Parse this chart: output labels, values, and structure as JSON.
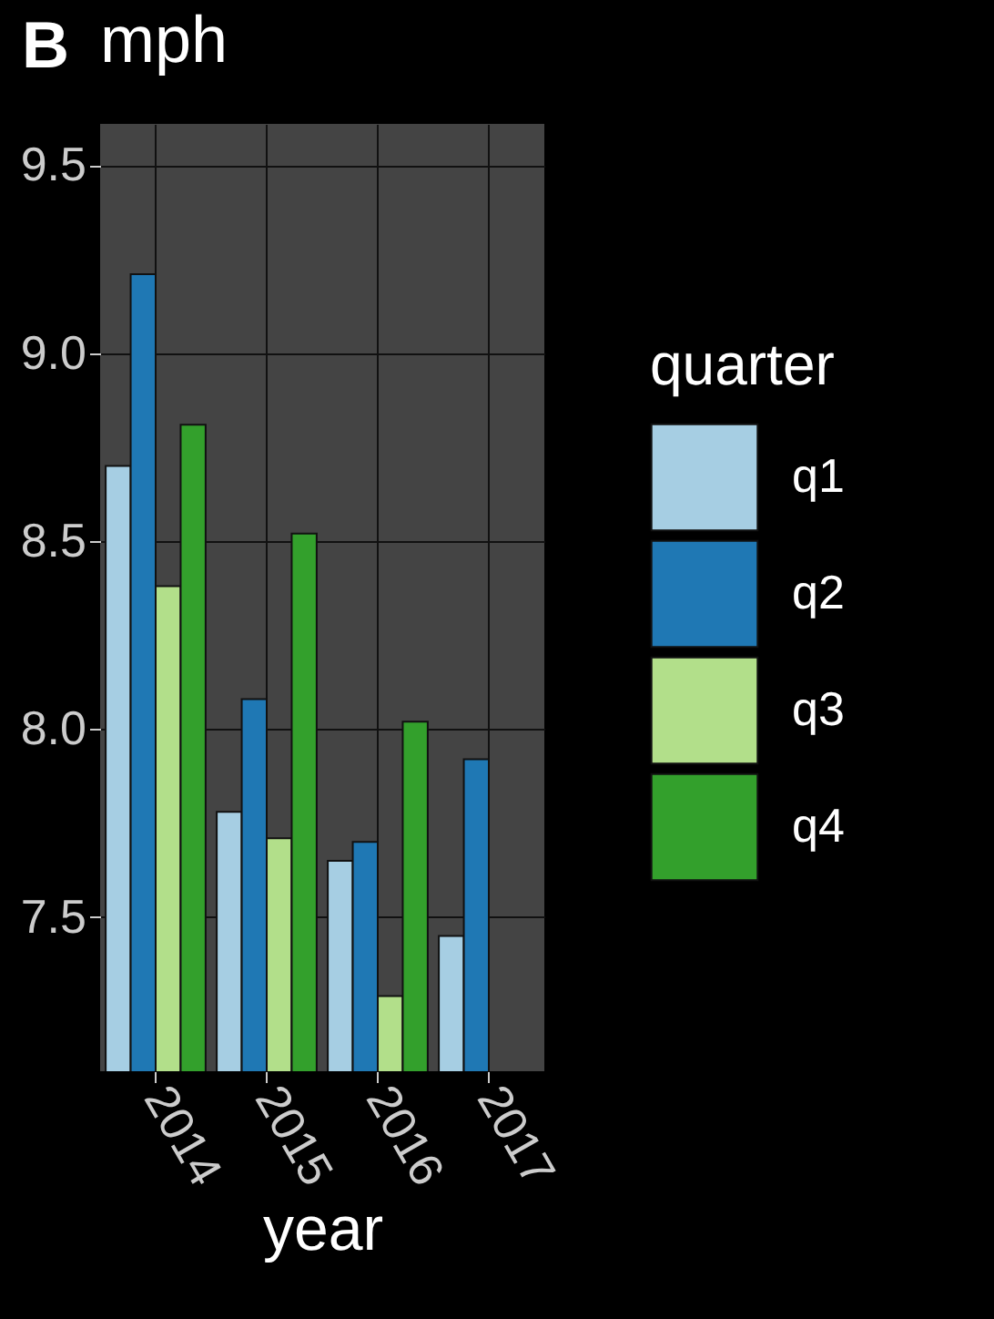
{
  "chart_data": {
    "type": "bar",
    "title": "mph",
    "annotations": [
      "B"
    ],
    "xlabel": "year",
    "legend_title": "quarter",
    "categories": [
      "2014",
      "2015",
      "2016",
      "2017"
    ],
    "series": [
      {
        "name": "q1",
        "color": "#a6cee3",
        "values": [
          8.7,
          7.78,
          7.65,
          7.45
        ]
      },
      {
        "name": "q2",
        "color": "#1f78b4",
        "values": [
          9.21,
          8.08,
          7.7,
          7.92
        ]
      },
      {
        "name": "q3",
        "color": "#b2df8a",
        "values": [
          8.38,
          7.71,
          7.29,
          null
        ]
      },
      {
        "name": "q4",
        "color": "#33a02c",
        "values": [
          8.81,
          8.52,
          8.02,
          null
        ]
      }
    ],
    "ylim": [
      7.09,
      9.61
    ],
    "yticks": [
      {
        "value": 7.5,
        "label": "7.5"
      },
      {
        "value": 8,
        "label": "8.0"
      },
      {
        "value": 8.5,
        "label": "8.5"
      },
      {
        "value": 9,
        "label": "9.0"
      },
      {
        "value": 9.5,
        "label": "9.5"
      }
    ],
    "grid": true,
    "legend": "right"
  }
}
